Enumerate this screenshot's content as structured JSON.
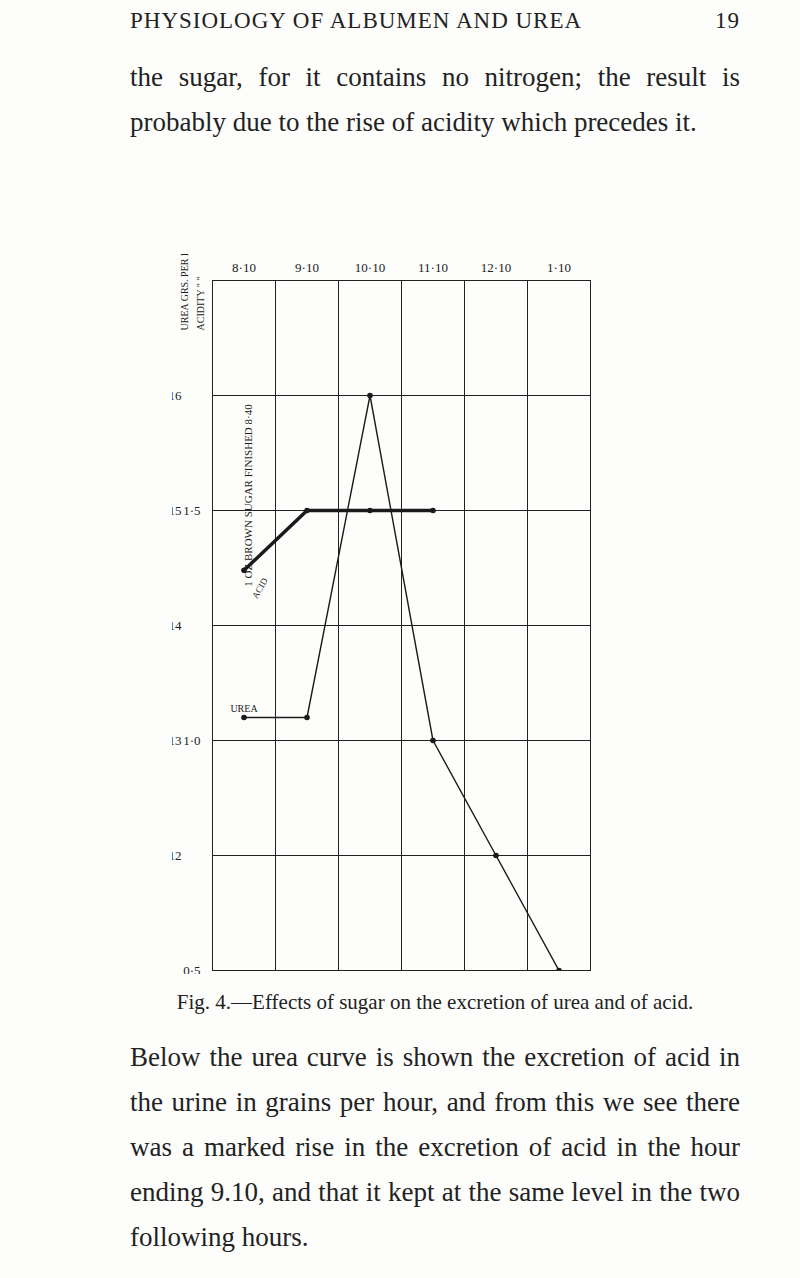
{
  "page": {
    "header": "PHYSIOLOGY OF ALBUMEN AND UREA",
    "page_number": "19",
    "paragraphs": [
      "the sugar, for it contains no nitrogen; the result is probably due to the rise of acidity which precedes it.",
      "Below the urea curve is shown the excretion of acid in the urine in grains per hour, and from this we see there was a marked rise in the excretion of acid in the hour ending 9.10, and that it kept at the same level in the two following hours."
    ],
    "caption": "Fig. 4.—Effects of sugar on the excretion of urea and of acid."
  },
  "chart_data": {
    "type": "line",
    "categories": [
      "8·10",
      "9·10",
      "10·10",
      "11·10",
      "12·10",
      "1·10"
    ],
    "y_label": "UREA GRS. PER HOUR",
    "y2_label": "ACIDITY \" \"",
    "ylim": [
      11,
      17
    ],
    "yticks": [
      12,
      13,
      14,
      15,
      16
    ],
    "y2lim": [
      0.5,
      2.0
    ],
    "y2ticks": [
      {
        "value": 0.5,
        "label": "0·5"
      },
      {
        "value": 1.0,
        "label": "1·0"
      },
      {
        "value": 1.5,
        "label": "1·5"
      }
    ],
    "grid": true,
    "annotations": [
      "1 OZ BROWN SUGAR FINISHED 8·40"
    ],
    "series": [
      {
        "name": "UREA",
        "color": "#1a1a1a",
        "values": [
          13.2,
          13.2,
          16.0,
          13.0,
          12.0,
          11.0
        ],
        "marker": "dot",
        "line_style": "solid"
      },
      {
        "name": "ACID",
        "color": "#1a1a1a",
        "values": [
          1.37,
          1.5,
          1.5,
          1.5,
          null,
          null
        ],
        "axis": "y2",
        "marker": "dot",
        "line_style": "bold"
      }
    ]
  }
}
